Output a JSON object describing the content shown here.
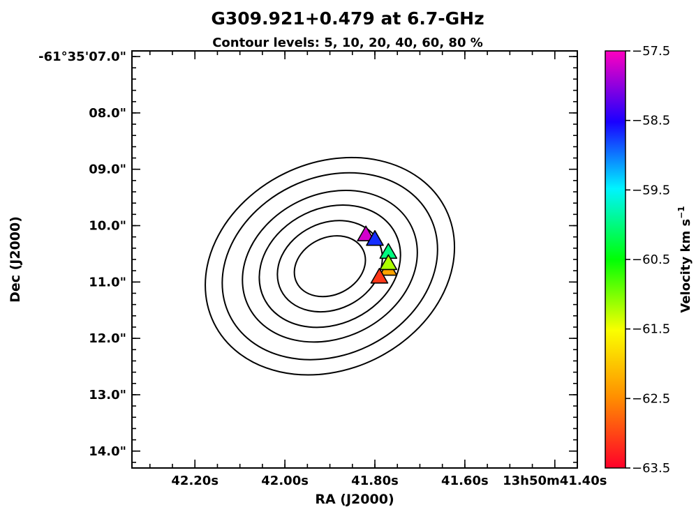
{
  "chart_data": {
    "type": "scatter",
    "title": "G309.921+0.479 at 6.7-GHz",
    "subtitle": "Contour levels: 5, 10, 20, 40, 60, 80 %",
    "xlabel": "RA (J2000)",
    "ylabel": "Dec (J2000)",
    "x_ticks": [
      {
        "value": 42.2,
        "label": "42.20s"
      },
      {
        "value": 42.0,
        "label": "42.00s"
      },
      {
        "value": 41.8,
        "label": "41.80s"
      },
      {
        "value": 41.6,
        "label": "41.60s"
      },
      {
        "value": 41.4,
        "label": "13h50m41.40s"
      }
    ],
    "y_ticks": [
      {
        "value": 7.0,
        "label": "-61°35'07.0\""
      },
      {
        "value": 8.0,
        "label": "08.0\""
      },
      {
        "value": 9.0,
        "label": "09.0\""
      },
      {
        "value": 10.0,
        "label": "10.0\""
      },
      {
        "value": 11.0,
        "label": "11.0\""
      },
      {
        "value": 12.0,
        "label": "12.0\""
      },
      {
        "value": 13.0,
        "label": "13.0\""
      },
      {
        "value": 14.0,
        "label": "14.0\""
      }
    ],
    "xlim": [
      42.34,
      41.35
    ],
    "ylim": [
      14.3,
      6.9
    ],
    "contour_levels_percent": [
      5,
      10,
      20,
      40,
      60,
      80
    ],
    "contour_center": {
      "ra_s": 41.9,
      "dec_arcsec": 10.72
    },
    "points": [
      {
        "ra_s": 41.82,
        "dec_arcsec": 10.17,
        "velocity": -57.7
      },
      {
        "ra_s": 41.8,
        "dec_arcsec": 10.25,
        "velocity": -58.7
      },
      {
        "ra_s": 41.77,
        "dec_arcsec": 10.48,
        "velocity": -60.0
      },
      {
        "ra_s": 41.77,
        "dec_arcsec": 10.78,
        "velocity": -62.3
      },
      {
        "ra_s": 41.77,
        "dec_arcsec": 10.68,
        "velocity": -61.2
      },
      {
        "ra_s": 41.79,
        "dec_arcsec": 10.92,
        "velocity": -63.1
      }
    ],
    "colorbar": {
      "label": "Velocity km s",
      "label_superscript": "−1",
      "min": -63.5,
      "max": -57.5,
      "ticks": [
        {
          "value": -57.5,
          "label": "−57.5"
        },
        {
          "value": -58.5,
          "label": "−58.5"
        },
        {
          "value": -59.5,
          "label": "−59.5"
        },
        {
          "value": -60.5,
          "label": "−60.5"
        },
        {
          "value": -61.5,
          "label": "−61.5"
        },
        {
          "value": -62.5,
          "label": "−62.5"
        },
        {
          "value": -63.5,
          "label": "−63.5"
        }
      ],
      "colormap": "gist_rainbow (red at min, magenta at max)"
    },
    "grid": false,
    "legend": "none"
  }
}
